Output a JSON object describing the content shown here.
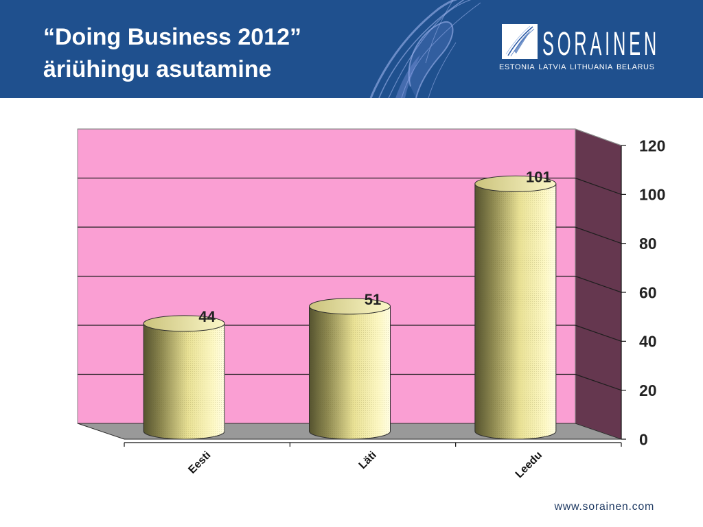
{
  "slide": {
    "title_lines": [
      "“Doing Business 2012”",
      "äriühingu asutamine"
    ],
    "footer_url": "www.sorainen.com"
  },
  "logo": {
    "wordmark": "SORAINEN",
    "tagline": "ESTONIA LATVIA LITHUANIA BELARUS",
    "icon": "sorainen-pen-swoosh-icon"
  },
  "colors": {
    "header_bg": "#1f508e",
    "header_text": "#ffffff",
    "chart_back_wall": "#fa9fd3",
    "chart_side_wall": "#65374f",
    "chart_floor": "#999999",
    "gridline": "#1e1e1e",
    "bar_dark": "#55532f",
    "bar_mid": "#e9e195",
    "bar_light": "#fdf8c4",
    "label_text": "#222222",
    "footer_text": "#1f3a63"
  },
  "chart_data": {
    "type": "bar",
    "style": "3d-cylinder",
    "categories": [
      "Eesti",
      "Läti",
      "Leedu"
    ],
    "values": [
      44,
      51,
      101
    ],
    "data_labels": [
      "44",
      "51",
      "101"
    ],
    "ylim": [
      0,
      120
    ],
    "yticks": [
      0,
      20,
      40,
      60,
      80,
      100,
      120
    ],
    "y_axis_side": "right",
    "grid": true,
    "legend": "none"
  }
}
